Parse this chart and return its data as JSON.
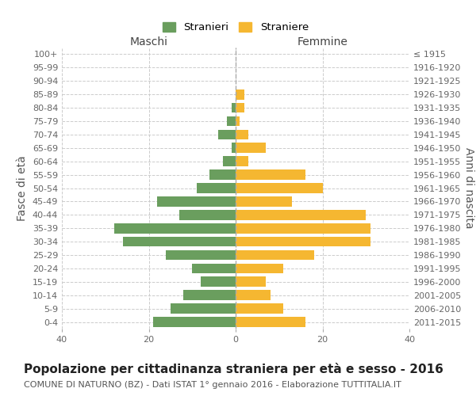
{
  "age_groups": [
    "100+",
    "95-99",
    "90-94",
    "85-89",
    "80-84",
    "75-79",
    "70-74",
    "65-69",
    "60-64",
    "55-59",
    "50-54",
    "45-49",
    "40-44",
    "35-39",
    "30-34",
    "25-29",
    "20-24",
    "15-19",
    "10-14",
    "5-9",
    "0-4"
  ],
  "birth_years": [
    "≤ 1915",
    "1916-1920",
    "1921-1925",
    "1926-1930",
    "1931-1935",
    "1936-1940",
    "1941-1945",
    "1946-1950",
    "1951-1955",
    "1956-1960",
    "1961-1965",
    "1966-1970",
    "1971-1975",
    "1976-1980",
    "1981-1985",
    "1986-1990",
    "1991-1995",
    "1996-2000",
    "2001-2005",
    "2006-2010",
    "2011-2015"
  ],
  "maschi": [
    0,
    0,
    0,
    0,
    1,
    2,
    4,
    1,
    3,
    6,
    9,
    18,
    13,
    28,
    26,
    16,
    10,
    8,
    12,
    15,
    19
  ],
  "femmine": [
    0,
    0,
    0,
    2,
    2,
    1,
    3,
    7,
    3,
    16,
    20,
    13,
    30,
    31,
    31,
    18,
    11,
    7,
    8,
    11,
    16
  ],
  "maschi_color": "#6a9e5e",
  "femmine_color": "#f5b731",
  "background_color": "#ffffff",
  "grid_color": "#cccccc",
  "title": "Popolazione per cittadinanza straniera per età e sesso - 2016",
  "subtitle": "COMUNE DI NATURNO (BZ) - Dati ISTAT 1° gennaio 2016 - Elaborazione TUTTITALIA.IT",
  "ylabel": "Fasce di età",
  "ylabel_right": "Anni di nascita",
  "xlabel_left": "Maschi",
  "xlabel_right": "Femmine",
  "legend_stranieri": "Stranieri",
  "legend_straniere": "Straniere",
  "xlim": 40,
  "title_fontsize": 11,
  "subtitle_fontsize": 8,
  "axis_label_fontsize": 10,
  "tick_fontsize": 8
}
